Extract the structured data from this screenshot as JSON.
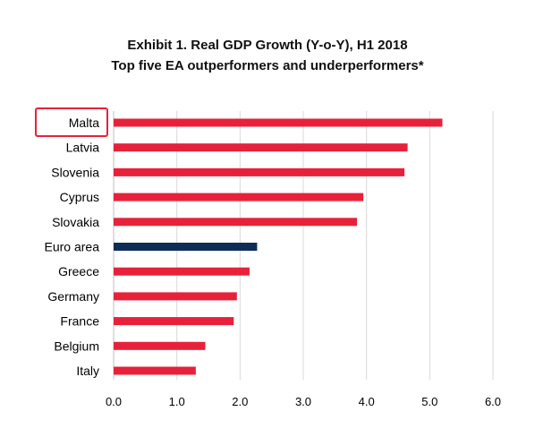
{
  "chart_data": {
    "type": "bar",
    "orientation": "horizontal",
    "title": "Exhibit 1. Real GDP Growth (Y-o-Y), H1 2018",
    "subtitle": "Top five EA outperformers and underperformers*",
    "xlabel": "",
    "ylabel": "",
    "xlim": [
      0,
      6
    ],
    "x_ticks": [
      "0.0",
      "1.0",
      "2.0",
      "3.0",
      "4.0",
      "5.0",
      "6.0"
    ],
    "grid": "vertical",
    "categories": [
      "Malta",
      "Latvia",
      "Slovenia",
      "Cyprus",
      "Slovakia",
      "Euro area",
      "Greece",
      "Germany",
      "France",
      "Belgium",
      "Italy"
    ],
    "values": [
      5.2,
      4.65,
      4.6,
      3.95,
      3.85,
      2.27,
      2.15,
      1.95,
      1.9,
      1.45,
      1.3
    ],
    "highlighted_category": "Malta",
    "colors": {
      "bar": "#e8213a",
      "euro_area_bar": "#0d2d57",
      "highlight_box": "#e8213a",
      "grid": "#d9d9d9"
    }
  }
}
